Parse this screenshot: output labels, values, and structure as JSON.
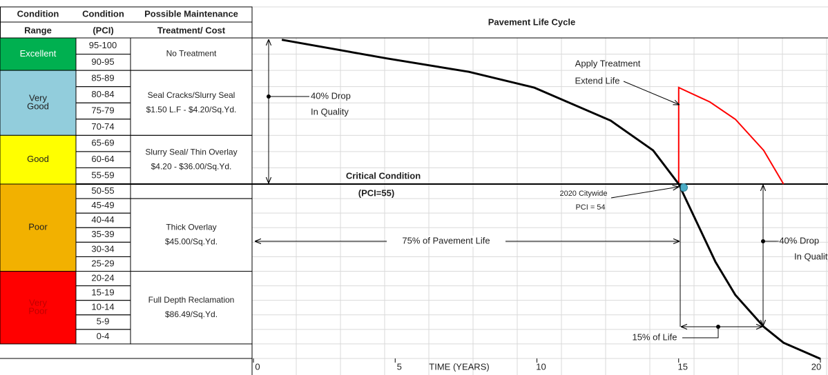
{
  "table": {
    "headers": [
      [
        "Condition",
        "Range"
      ],
      [
        "Condition",
        "(PCI)"
      ],
      [
        "Possible Maintenance",
        "Treatment/ Cost"
      ]
    ],
    "ranges": [
      {
        "label": [
          "Excellent"
        ],
        "color": "#00b050",
        "text_color": "#ffffff",
        "pci": [
          "95-100",
          "90-95"
        ]
      },
      {
        "label": [
          "Very",
          "Good"
        ],
        "color": "#92cddc",
        "text_color": "#1f1f1f",
        "pci": [
          "85-89",
          "80-84",
          "75-79",
          "70-74"
        ]
      },
      {
        "label": [
          "Good"
        ],
        "color": "#ffff00",
        "text_color": "#1f1f1f",
        "pci": [
          "65-69",
          "60-64",
          "55-59"
        ]
      },
      {
        "label": [
          "Poor"
        ],
        "color": "#f2b100",
        "text_color": "#1f1f1f",
        "pci": [
          "50-55",
          "45-49",
          "40-44",
          "35-39",
          "30-34",
          "25-29"
        ]
      },
      {
        "label": [
          "Very",
          "Poor"
        ],
        "color": "#ff0000",
        "text_color": "#c00000",
        "pci": [
          "20-24",
          "15-19",
          "10-14",
          "5-9",
          "0-4"
        ]
      }
    ],
    "treatments": [
      {
        "lines": [
          "No Treatment"
        ]
      },
      {
        "lines": [
          "Seal Cracks/Slurry Seal",
          "$1.50 L.F - $4.20/Sq.Yd."
        ]
      },
      {
        "lines": [
          "Slurry Seal/ Thin Overlay",
          "$4.20 - $36.00/Sq.Yd."
        ]
      },
      {
        "lines": [
          "Thick Overlay",
          "$45.00/Sq.Yd."
        ]
      },
      {
        "lines": [
          "Full Depth Reclamation",
          "$86.49/Sq.Yd."
        ]
      }
    ]
  },
  "chart": {
    "title": "Pavement Life Cycle",
    "x_label": "TIME (YEARS)",
    "xlim": [
      0,
      20
    ],
    "xticks": [
      0,
      5,
      10,
      15,
      20
    ],
    "ylim": [
      0,
      100
    ],
    "curve": {
      "color": "#000000",
      "x": [
        1,
        4.7,
        7.6,
        9.9,
        12.6,
        14.1,
        15,
        16.3,
        17,
        18,
        18.7,
        20
      ],
      "pci": [
        100,
        94.2,
        90,
        85.1,
        74.8,
        65.5,
        55,
        30.7,
        20.4,
        10.5,
        5.5,
        0.5
      ]
    },
    "treatment_curve": {
      "color": "#ff0000",
      "x": [
        15,
        15,
        16.1,
        17,
        18,
        18.7
      ],
      "pci": [
        55,
        85.1,
        80.6,
        75.2,
        65.5,
        55
      ]
    },
    "annotations": {
      "drop_left": [
        "40% Drop",
        "In Quality"
      ],
      "apply": [
        "Apply Treatment",
        "Extend Life"
      ],
      "critical": [
        "Critical Condition",
        "(PCI=55)"
      ],
      "citywide": [
        "2020 Citywide",
        "PCI = 54"
      ],
      "life75": "75% of Pavement Life",
      "drop_right": [
        "-40% Drop",
        "In Quality"
      ],
      "life15": "15% of Life"
    }
  }
}
